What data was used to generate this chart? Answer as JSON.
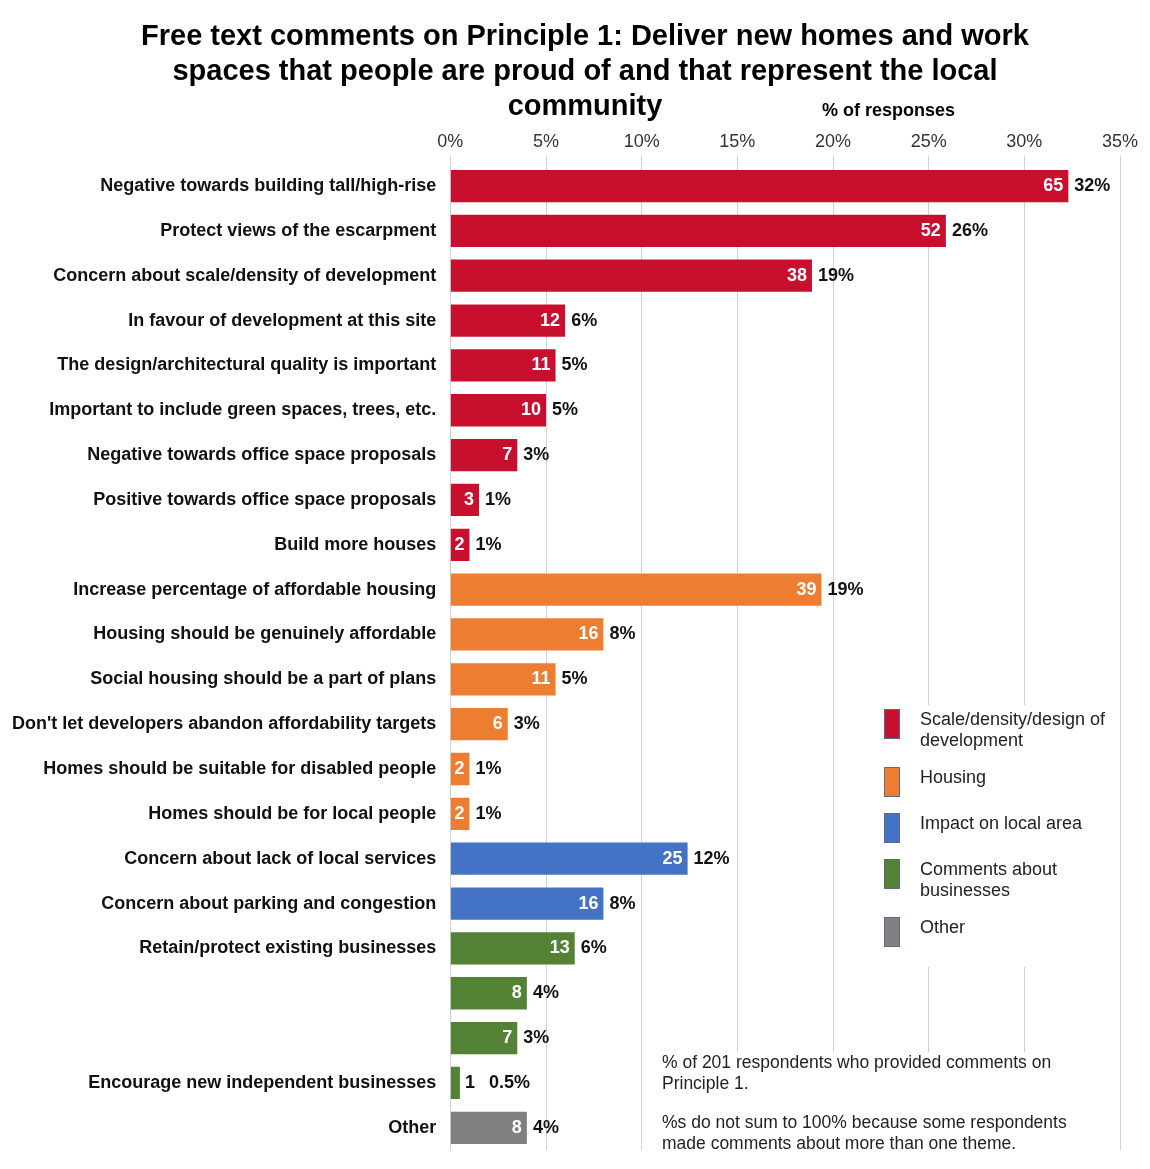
{
  "chart_data": {
    "type": "bar",
    "orientation": "horizontal",
    "title": "Free text comments on Principle 1: Deliver new homes and work spaces that people are proud of and that represent the local community",
    "xlabel": "% of responses",
    "categories": [
      "Negative towards building tall/high-rise",
      "Protect views of the escarpment",
      "Concern about scale/density of development",
      "In favour of development at this site",
      "The design/architectural quality is important",
      "Important to include green spaces, trees, etc.",
      "Negative towards office space proposals",
      "Positive towards office space proposals",
      "Build more houses",
      "Increase percentage of affordable housing",
      "Housing should be genuinely affordable",
      "Social housing should be a part of plans",
      "Don't let developers abandon affordability targets",
      "Homes should be suitable for disabled people",
      "Homes should be for local people",
      "Concern about lack of local services",
      "Concern about parking and congestion",
      "Retain/protect existing businesses",
      null,
      null,
      "Encourage new independent businesses",
      "Other"
    ],
    "series": [
      {
        "name": "Scale/density/design of development",
        "color": "#c8102e",
        "values": [
          32.3,
          25.9,
          18.9,
          6.0,
          5.5,
          5.0,
          3.5,
          1.5,
          1.0,
          null,
          null,
          null,
          null,
          null,
          null,
          null,
          null,
          null,
          null,
          null,
          null,
          null
        ],
        "value_labels": [
          "32%",
          "26%",
          "19%",
          "6%",
          "5%",
          "5%",
          "3%",
          "1%",
          "1%",
          null,
          null,
          null,
          null,
          null,
          null,
          null,
          null,
          null,
          null,
          null,
          null,
          null
        ]
      },
      {
        "name": "Housing",
        "color": "#ed7d31",
        "values": [
          null,
          null,
          null,
          null,
          null,
          null,
          null,
          null,
          null,
          19.4,
          8.0,
          5.5,
          3.0,
          1.0,
          1.0,
          null,
          null,
          null,
          null,
          null,
          null,
          null
        ],
        "value_labels": [
          null,
          null,
          null,
          null,
          null,
          null,
          null,
          null,
          null,
          "19%",
          "8%",
          "5%",
          "3%",
          "1%",
          "1%",
          null,
          null,
          null,
          null,
          null,
          null,
          null
        ]
      },
      {
        "name": "Impact on local area",
        "color": "#4472c4",
        "values": [
          null,
          null,
          null,
          null,
          null,
          null,
          null,
          null,
          null,
          null,
          null,
          null,
          null,
          null,
          null,
          12.4,
          8.0,
          null,
          null,
          null,
          null,
          null
        ],
        "value_labels": [
          null,
          null,
          null,
          null,
          null,
          null,
          null,
          null,
          null,
          null,
          null,
          null,
          null,
          null,
          null,
          "12%",
          "8%",
          null,
          null,
          null,
          null,
          null
        ]
      },
      {
        "name": "Comments about businesses",
        "color": "#548235",
        "values": [
          null,
          null,
          null,
          null,
          null,
          null,
          null,
          null,
          null,
          null,
          null,
          null,
          null,
          null,
          null,
          null,
          null,
          6.5,
          4.0,
          3.5,
          0.5,
          null
        ],
        "value_labels": [
          null,
          null,
          null,
          null,
          null,
          null,
          null,
          null,
          null,
          null,
          null,
          null,
          null,
          null,
          null,
          null,
          null,
          "6%",
          "4%",
          "3%",
          "0.5%",
          null
        ]
      },
      {
        "name": "Other",
        "color": "#808080",
        "values": [
          null,
          null,
          null,
          null,
          null,
          null,
          null,
          null,
          null,
          null,
          null,
          null,
          null,
          null,
          null,
          null,
          null,
          null,
          null,
          null,
          null,
          4.0
        ],
        "value_labels": [
          null,
          null,
          null,
          null,
          null,
          null,
          null,
          null,
          null,
          null,
          null,
          null,
          null,
          null,
          null,
          null,
          null,
          null,
          null,
          null,
          null,
          "4%"
        ]
      }
    ],
    "xlim": [
      0,
      35
    ],
    "xticks": [
      {
        "value": 0,
        "label": "0%"
      },
      {
        "value": 5,
        "label": "5%"
      },
      {
        "value": 10,
        "label": "10%"
      },
      {
        "value": 15,
        "label": "15%"
      },
      {
        "value": 20,
        "label": "20%"
      },
      {
        "value": 25,
        "label": "25%"
      },
      {
        "value": 30,
        "label": "30%"
      },
      {
        "value": 35,
        "label": "35%"
      }
    ],
    "grid": "x",
    "legend": "right",
    "annotations": [
      {
        "text": "65",
        "x": 32.3,
        "y": "Negative towards building tall/high-rise"
      },
      {
        "text": "52",
        "x": 25.9,
        "y": "Protect views of the escarpment"
      },
      {
        "text": "38",
        "x": 18.9,
        "y": "Concern about scale/density of development"
      },
      {
        "text": "12",
        "x": 6.0,
        "y": "In favour of development at this site"
      },
      {
        "text": "11",
        "x": 5.5,
        "y": "The design/architectural quality is important"
      },
      {
        "text": "10",
        "x": 5.0,
        "y": "Important to include green spaces, trees, etc."
      },
      {
        "text": "7",
        "x": 3.5,
        "y": "Negative towards office space proposals"
      },
      {
        "text": "3",
        "x": 1.5,
        "y": "Positive towards office space proposals"
      },
      {
        "text": "2",
        "x": 1.0,
        "y": "Build more houses"
      },
      {
        "text": "39",
        "x": 19.4,
        "y": "Increase percentage of affordable housing"
      },
      {
        "text": "16",
        "x": 8.0,
        "y": "Housing should be genuinely affordable"
      },
      {
        "text": "11",
        "x": 5.5,
        "y": "Social housing should be a part of plans"
      },
      {
        "text": "6",
        "x": 3.0,
        "y": "Don't let developers abandon affordability targets"
      },
      {
        "text": "2",
        "x": 1.0,
        "y": "Homes should be suitable for disabled people"
      },
      {
        "text": "2",
        "x": 1.0,
        "y": "Homes should be for local people"
      },
      {
        "text": "25",
        "x": 12.4,
        "y": "Concern about lack of local services"
      },
      {
        "text": "16",
        "x": 8.0,
        "y": "Concern about parking and congestion"
      },
      {
        "text": "13",
        "x": 6.5,
        "y": "Retain/protect existing businesses"
      },
      {
        "text": "8",
        "x": 4.0
      },
      {
        "text": "7",
        "x": 3.5
      },
      {
        "text": "1",
        "x": 0.5,
        "y": "Encourage new independent businesses"
      },
      {
        "text": "8",
        "x": 4.0,
        "y": "Other"
      },
      "% of 201 respondents who provided comments on Principle 1.",
      "%s do not sum to 100% because some respondents made comments about more than one theme."
    ]
  }
}
